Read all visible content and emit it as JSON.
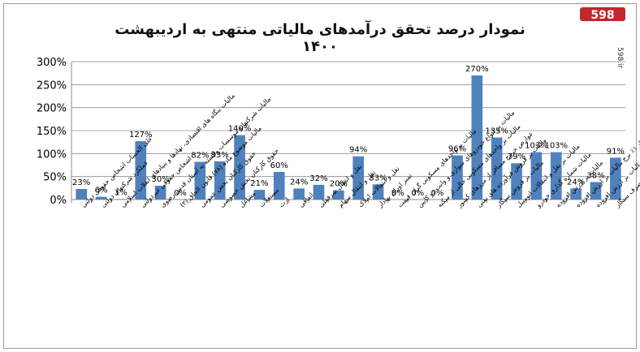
{
  "brand": {
    "logo_text": "598",
    "url": "598.ir",
    "color": "#c0282d"
  },
  "chart_data": {
    "type": "bar",
    "title": "نمودار درصد تحقق درآمدهای مالیاتی منتهی به اردیبهشت ۱۴۰۰",
    "bar_color": "#4f81bd",
    "ylim": [
      0,
      300
    ],
    "yticks": [
      "0%",
      "50%",
      "100%",
      "150%",
      "200%",
      "250%",
      "300%"
    ],
    "grid": true,
    "legend": "none",
    "categories": [
      "علی الحساب اشخاص حقوقی دولتی",
      "عملکرد شرکتهای دولتی",
      "مالیات بنگاه های اقتصادی، نهادها و بنیادهای انقلاب اسلامی",
      "اشخاص حقوقی غیردولتی",
      "مالیات شرکتها و موسسات وابسته به آستان قدس رضوی",
      "مالیات موضوع ماده (۷۸) قانون الحاق (۲)",
      "حقوق کارکنان بخش عمومی",
      "حقوق کارکنان بخش خصوصی",
      "مشاغل",
      "مستغلات",
      "ارث",
      "اتفاقی",
      "نقل و انتقال سرقفلی",
      "نقل و انتقال سهام",
      "نقل و انتقالات املاک",
      "تمبر اوراق بهادار",
      "مالیات بر واحدهای مسکونی گران قیمت",
      "مالیات بر انواع خودروهای سواری و وانت دو کابین",
      "مالیات بر واحدهای مسکونی خالی از سکنه",
      "عوارض خروج مسافر از مرزهای کشور",
      "مالیات بر فروش فرآورده های نفتی",
      "مالیات بر فروش سیگار",
      "مالیات بر نقل و انتقالات اتومبیل",
      "مالیات شماره گذاری خودرو",
      "مالیات بر ارزش افزوده",
      "درآمد حاصل از ۱٪ نرخ مالیات بر ارزش افزوده",
      "۳۷ اصلاح درصد از ۳ درصد موضوع ماده مالیات بر ارزش افزوده",
      "مالیات بر مصرف سیگار"
    ],
    "values": [
      23,
      6,
      1,
      127,
      30,
      0,
      82,
      83,
      140,
      21,
      60,
      24,
      32,
      20,
      94,
      33,
      0,
      0,
      0,
      96,
      270,
      135,
      79,
      103,
      103,
      24,
      38,
      91
    ],
    "data_labels": [
      "23%",
      "6%",
      "1%",
      "127%",
      "30%",
      "0%",
      "82%",
      "83%",
      "140%",
      "21%",
      "60%",
      "24%",
      "32%",
      "20%",
      "94%",
      "33%",
      "0%",
      "0%",
      "0%",
      "96%",
      "270%",
      "135%",
      "79%",
      "103%",
      "103%",
      "24%",
      "38%",
      "91%"
    ]
  }
}
